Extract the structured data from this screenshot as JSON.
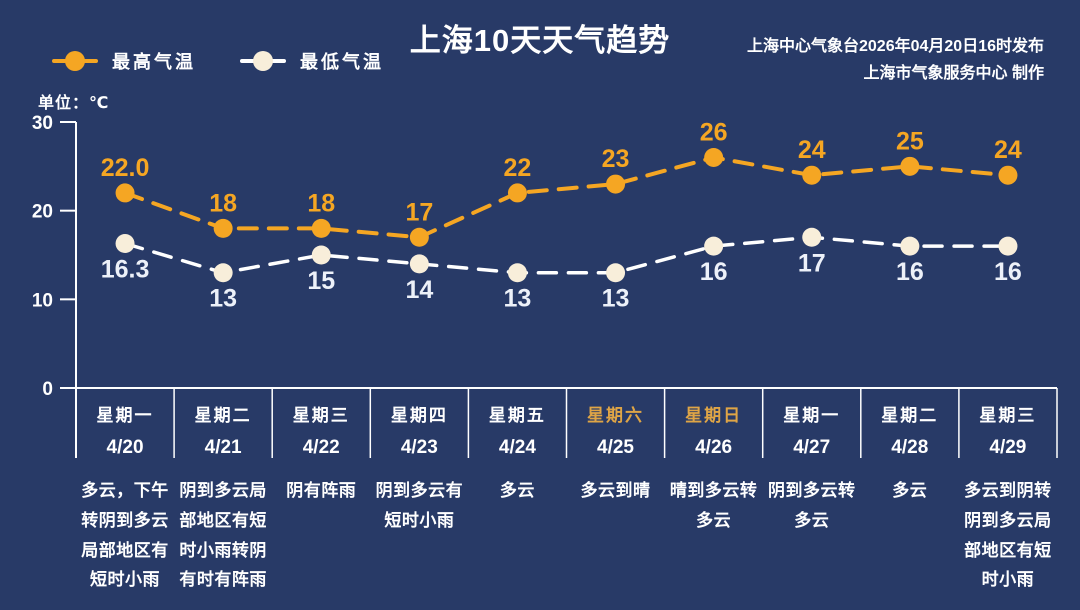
{
  "header": {
    "title": "上海10天天气趋势",
    "publisher_line1": "上海中心气象台2026年04月20日16时发布",
    "publisher_line2": "上海市气象服务中心  制作",
    "unit_label": "单位：℃"
  },
  "legend": {
    "max_label": "最高气温",
    "min_label": "最低气温"
  },
  "colors": {
    "background": "#283A67",
    "max_series": "#F5A623",
    "min_series_line": "#FFFFFF",
    "min_marker": "#F8EEDA",
    "min_label_text": "#EDF1F9",
    "axis": "#FFFFFF",
    "weekend_text": "#DFA546",
    "text": "#FFFFFF"
  },
  "chart_data": {
    "type": "line",
    "title": "上海10天天气趋势",
    "x": [
      "4/20",
      "4/21",
      "4/22",
      "4/23",
      "4/24",
      "4/25",
      "4/26",
      "4/27",
      "4/28",
      "4/29"
    ],
    "series": [
      {
        "name": "最高气温",
        "values": [
          22.0,
          18,
          18,
          17,
          22,
          23,
          26,
          24,
          25,
          24
        ],
        "labels": [
          "22.0",
          "18",
          "18",
          "17",
          "22",
          "23",
          "26",
          "24",
          "25",
          "24"
        ],
        "color": "#F5A623",
        "marker_color": "#F5A623",
        "label_color": "#F5A623",
        "stroke_width": 4,
        "label_offset": -17
      },
      {
        "name": "最低气温",
        "values": [
          16.3,
          13,
          15,
          14,
          13,
          13,
          16,
          17,
          16,
          16
        ],
        "labels": [
          "16.3",
          "13",
          "15",
          "14",
          "13",
          "13",
          "16",
          "17",
          "16",
          "16"
        ],
        "color": "#FFFFFF",
        "marker_color": "#F8EEDA",
        "label_color": "#EDF1F9",
        "stroke_width": 3.5,
        "label_offset": 34
      }
    ],
    "ylabel": "单位：℃",
    "ylim": [
      0,
      30
    ],
    "yticks": [
      0,
      10,
      20,
      30
    ],
    "grid": false,
    "line_style": "dashed",
    "legend_position": "top-left"
  },
  "days": [
    {
      "weekday": "星期一",
      "date": "4/20",
      "weather": "多云，下午转阴到多云局部地区有短时小雨"
    },
    {
      "weekday": "星期二",
      "date": "4/21",
      "weather": "阴到多云局部地区有短时小雨转阴有时有阵雨"
    },
    {
      "weekday": "星期三",
      "date": "4/22",
      "weather": "阴有阵雨"
    },
    {
      "weekday": "星期四",
      "date": "4/23",
      "weather": "阴到多云有短时小雨"
    },
    {
      "weekday": "星期五",
      "date": "4/24",
      "weather": "多云"
    },
    {
      "weekday": "星期六",
      "date": "4/25",
      "weather": "多云到晴"
    },
    {
      "weekday": "星期日",
      "date": "4/26",
      "weather": "晴到多云转多云"
    },
    {
      "weekday": "星期一",
      "date": "4/27",
      "weather": "阴到多云转多云"
    },
    {
      "weekday": "星期二",
      "date": "4/28",
      "weather": "多云"
    },
    {
      "weekday": "星期三",
      "date": "4/29",
      "weather": "多云到阴转阴到多云局部地区有短时小雨"
    }
  ]
}
